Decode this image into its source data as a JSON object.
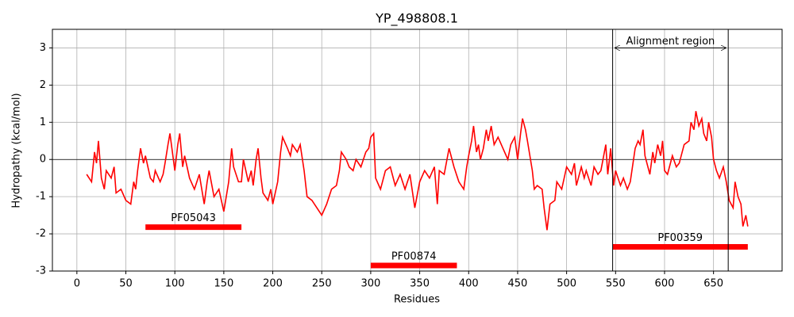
{
  "chart_data": {
    "type": "line",
    "title": "YP_498808.1",
    "x_label": "Residues",
    "y_label": "Hydropathy (kcal/mol)",
    "xlim": [
      -25,
      720
    ],
    "ylim": [
      -3,
      3.5
    ],
    "xticks": [
      0,
      50,
      100,
      150,
      200,
      250,
      300,
      350,
      400,
      450,
      500,
      550,
      600,
      650
    ],
    "yticks": [
      -3,
      -2,
      -1,
      0,
      1,
      2,
      3
    ],
    "grid": true,
    "hline": 0,
    "x": [
      10,
      15,
      18,
      20,
      22,
      25,
      28,
      30,
      35,
      38,
      40,
      45,
      50,
      55,
      58,
      60,
      62,
      65,
      68,
      70,
      75,
      78,
      80,
      85,
      88,
      90,
      93,
      95,
      98,
      100,
      103,
      105,
      108,
      110,
      115,
      120,
      125,
      130,
      133,
      135,
      140,
      145,
      150,
      155,
      158,
      160,
      165,
      168,
      170,
      175,
      178,
      180,
      183,
      185,
      188,
      190,
      195,
      198,
      200,
      205,
      208,
      210,
      215,
      218,
      220,
      225,
      228,
      232,
      235,
      240,
      245,
      250,
      255,
      260,
      265,
      268,
      270,
      275,
      278,
      282,
      285,
      290,
      295,
      298,
      300,
      303,
      305,
      310,
      315,
      320,
      325,
      330,
      335,
      340,
      345,
      350,
      355,
      360,
      365,
      368,
      370,
      375,
      380,
      385,
      390,
      395,
      398,
      400,
      403,
      405,
      408,
      410,
      412,
      415,
      418,
      420,
      423,
      426,
      430,
      435,
      440,
      443,
      447,
      450,
      453,
      455,
      458,
      460,
      465,
      467,
      470,
      475,
      477,
      480,
      483,
      488,
      490,
      495,
      500,
      505,
      508,
      510,
      515,
      518,
      520,
      525,
      528,
      532,
      535,
      540,
      542,
      545,
      548,
      550,
      555,
      558,
      562,
      565,
      570,
      573,
      575,
      578,
      580,
      585,
      588,
      590,
      593,
      596,
      598,
      600,
      603,
      608,
      612,
      615,
      620,
      625,
      627,
      630,
      632,
      635,
      638,
      640,
      643,
      645,
      648,
      650,
      653,
      656,
      660,
      663,
      666,
      670,
      672,
      675,
      678,
      680,
      683,
      685
    ],
    "series": [
      {
        "name": "Hydropathy",
        "color": "#ff0000",
        "values": [
          -0.4,
          -0.6,
          0.2,
          -0.1,
          0.5,
          -0.5,
          -0.8,
          -0.3,
          -0.5,
          -0.2,
          -0.9,
          -0.8,
          -1.1,
          -1.2,
          -0.6,
          -0.8,
          -0.3,
          0.3,
          -0.1,
          0.1,
          -0.5,
          -0.6,
          -0.3,
          -0.6,
          -0.4,
          -0.1,
          0.4,
          0.7,
          0.1,
          -0.3,
          0.4,
          0.7,
          -0.2,
          0.1,
          -0.5,
          -0.8,
          -0.4,
          -1.2,
          -0.6,
          -0.3,
          -1.0,
          -0.8,
          -1.4,
          -0.6,
          0.3,
          -0.2,
          -0.6,
          -0.6,
          0.0,
          -0.6,
          -0.3,
          -0.7,
          0.0,
          0.3,
          -0.5,
          -0.9,
          -1.1,
          -0.8,
          -1.2,
          -0.6,
          0.2,
          0.6,
          0.3,
          0.1,
          0.4,
          0.2,
          0.4,
          -0.3,
          -1.0,
          -1.1,
          -1.3,
          -1.5,
          -1.2,
          -0.8,
          -0.7,
          -0.3,
          0.2,
          0.0,
          -0.2,
          -0.3,
          0.0,
          -0.2,
          0.2,
          0.3,
          0.6,
          0.7,
          -0.5,
          -0.8,
          -0.3,
          -0.2,
          -0.7,
          -0.4,
          -0.8,
          -0.4,
          -1.3,
          -0.6,
          -0.3,
          -0.5,
          -0.2,
          -1.2,
          -0.3,
          -0.4,
          0.3,
          -0.2,
          -0.6,
          -0.8,
          -0.2,
          0.1,
          0.5,
          0.9,
          0.2,
          0.4,
          0.0,
          0.3,
          0.8,
          0.5,
          0.9,
          0.4,
          0.6,
          0.3,
          0.0,
          0.4,
          0.6,
          0.0,
          0.7,
          1.1,
          0.8,
          0.5,
          -0.3,
          -0.8,
          -0.7,
          -0.8,
          -1.3,
          -1.9,
          -1.2,
          -1.1,
          -0.6,
          -0.8,
          -0.2,
          -0.4,
          -0.1,
          -0.7,
          -0.2,
          -0.5,
          -0.3,
          -0.7,
          -0.2,
          -0.4,
          -0.3,
          0.4,
          -0.4,
          0.3,
          -0.7,
          -0.3,
          -0.7,
          -0.5,
          -0.8,
          -0.6,
          0.3,
          0.5,
          0.4,
          0.8,
          0.1,
          -0.4,
          0.2,
          -0.1,
          0.4,
          0.1,
          0.5,
          -0.3,
          -0.4,
          0.1,
          -0.2,
          -0.1,
          0.4,
          0.5,
          1.0,
          0.8,
          1.3,
          0.9,
          1.1,
          0.7,
          0.5,
          1.0,
          0.6,
          0.0,
          -0.3,
          -0.5,
          -0.2,
          -0.6,
          -1.1,
          -1.3,
          -0.6,
          -1.0,
          -1.2,
          -1.8,
          -1.5,
          -1.8
        ]
      }
    ],
    "domains": [
      {
        "label": "PF05043",
        "start": 70,
        "end": 168,
        "y": -1.82
      },
      {
        "label": "PF00874",
        "start": 300,
        "end": 388,
        "y": -2.85
      },
      {
        "label": "PF00359",
        "start": 547,
        "end": 685,
        "y": -2.35
      }
    ],
    "alignment_region": {
      "label": "Alignment region",
      "start": 547,
      "end": 665,
      "y": 3
    }
  }
}
